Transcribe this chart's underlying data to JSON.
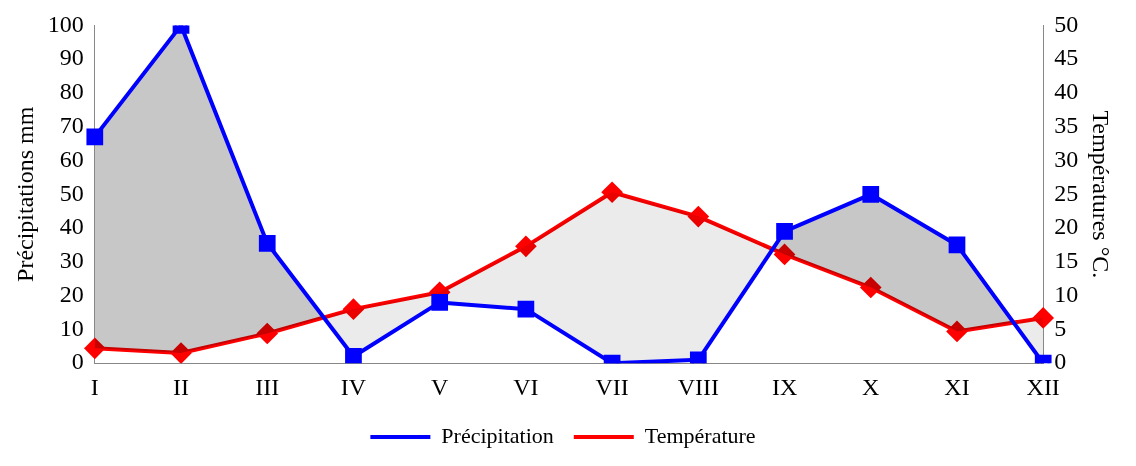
{
  "chart_data": {
    "type": "line",
    "ylabel": "Précipitations mm",
    "y2label": "Températures °C.",
    "categories": [
      "I",
      "II",
      "III",
      "IV",
      "V",
      "VI",
      "VII",
      "VIII",
      "IX",
      "X",
      "XI",
      "XII"
    ],
    "series": [
      {
        "name": "Précipitation",
        "color": "#0000ff",
        "marker": "square",
        "values": [
          67,
          100,
          35.5,
          2,
          18,
          16,
          0,
          1,
          39,
          50,
          35,
          0
        ]
      },
      {
        "name": "Température",
        "color": "#ff0000",
        "marker": "diamond",
        "axis": "y2",
        "values": [
          2.2,
          1.5,
          4.4,
          8,
          10.5,
          17.3,
          25.3,
          21.7,
          16.1,
          11.2,
          4.7,
          6.7
        ]
      }
    ],
    "ylim": [
      0,
      100
    ],
    "yticks": [
      0,
      10,
      20,
      30,
      40,
      50,
      60,
      70,
      80,
      90,
      100
    ],
    "y2lim": [
      0,
      50
    ],
    "y2ticks": [
      0,
      5,
      10,
      15,
      20,
      25,
      30,
      35,
      40,
      45,
      50
    ],
    "grid": false,
    "legend": "bottom",
    "line_style": "solid"
  }
}
